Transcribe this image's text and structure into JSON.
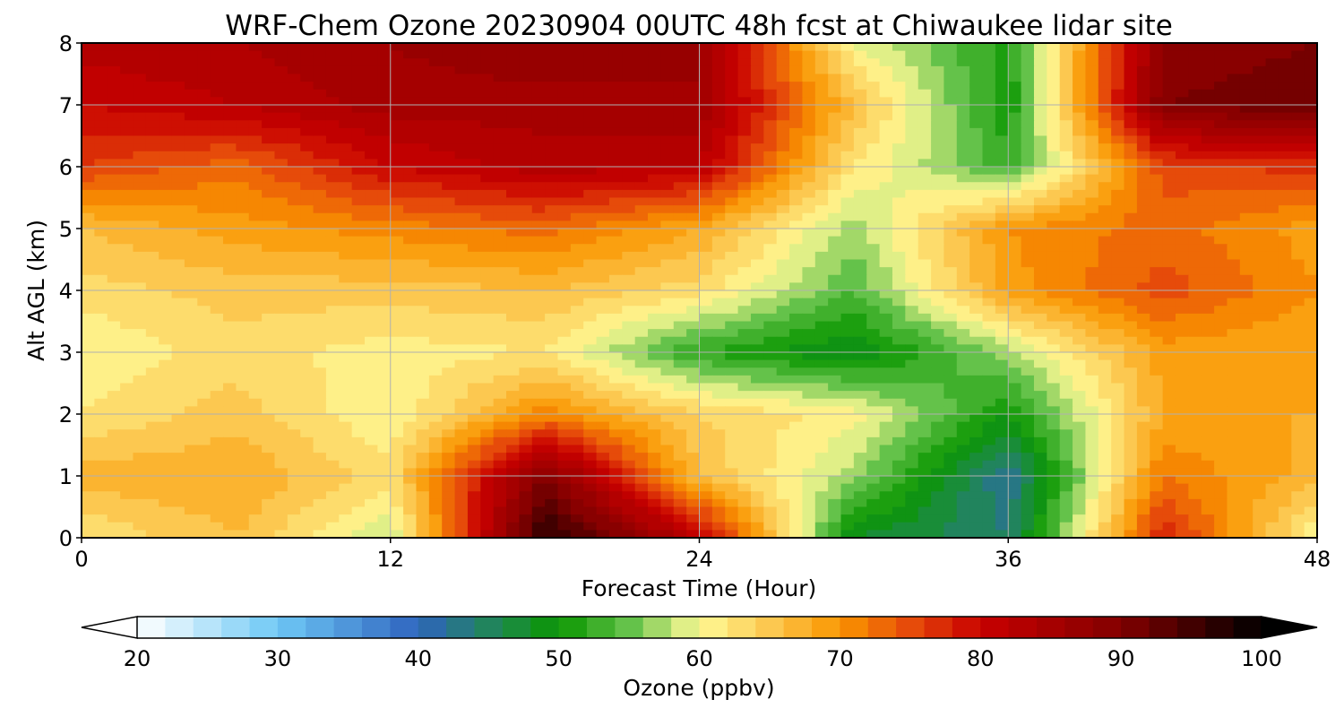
{
  "chart_data": {
    "type": "heatmap",
    "title": "WRF-Chem Ozone  20230904 00UTC 48h fcst at Chiwaukee lidar site",
    "xlabel": "Forecast Time (Hour)",
    "ylabel": "Alt AGL (km)",
    "xlim": [
      0,
      48
    ],
    "ylim": [
      0,
      8
    ],
    "xticks": [
      0,
      12,
      24,
      36,
      48
    ],
    "yticks": [
      0,
      1,
      2,
      3,
      4,
      5,
      6,
      7,
      8
    ],
    "grid": true,
    "x": [
      0,
      6,
      12,
      18,
      24,
      30,
      36,
      42,
      48
    ],
    "y": [
      0,
      1,
      2,
      3,
      4,
      5,
      6,
      7,
      8
    ],
    "z": [
      [
        62,
        66,
        58,
        97,
        82,
        48,
        44,
        78,
        60
      ],
      [
        67,
        68,
        63,
        90,
        66,
        57,
        42,
        72,
        67
      ],
      [
        62,
        65,
        60,
        71,
        64,
        61,
        50,
        68,
        68
      ],
      [
        60,
        63,
        61,
        62,
        52,
        48,
        57,
        69,
        68
      ],
      [
        63,
        65,
        65,
        66,
        63,
        54,
        69,
        75,
        70
      ],
      [
        66,
        69,
        71,
        73,
        68,
        57,
        70,
        73,
        69
      ],
      [
        76,
        73,
        80,
        83,
        82,
        62,
        53,
        75,
        77
      ],
      [
        80,
        82,
        85,
        85,
        86,
        66,
        50,
        90,
        92
      ],
      [
        83,
        84,
        86,
        88,
        86,
        60,
        51,
        88,
        90
      ]
    ],
    "colorbar": {
      "label": "Ozone  (ppbv)",
      "min": 20,
      "max": 100,
      "step": 2,
      "ticks": [
        20,
        30,
        40,
        50,
        60,
        70,
        80,
        90,
        100
      ],
      "extend": "both",
      "stops": [
        {
          "v": 20,
          "c": "#ffffff"
        },
        {
          "v": 30,
          "c": "#6ec8f5"
        },
        {
          "v": 40,
          "c": "#2f64be"
        },
        {
          "v": 46,
          "c": "#1e8a4a"
        },
        {
          "v": 50,
          "c": "#0a9600"
        },
        {
          "v": 55,
          "c": "#64c24a"
        },
        {
          "v": 60,
          "c": "#fffa96"
        },
        {
          "v": 65,
          "c": "#fcc850"
        },
        {
          "v": 70,
          "c": "#fa9600"
        },
        {
          "v": 75,
          "c": "#e64b0a"
        },
        {
          "v": 80,
          "c": "#c80000"
        },
        {
          "v": 90,
          "c": "#820000"
        },
        {
          "v": 100,
          "c": "#000000"
        }
      ]
    }
  }
}
